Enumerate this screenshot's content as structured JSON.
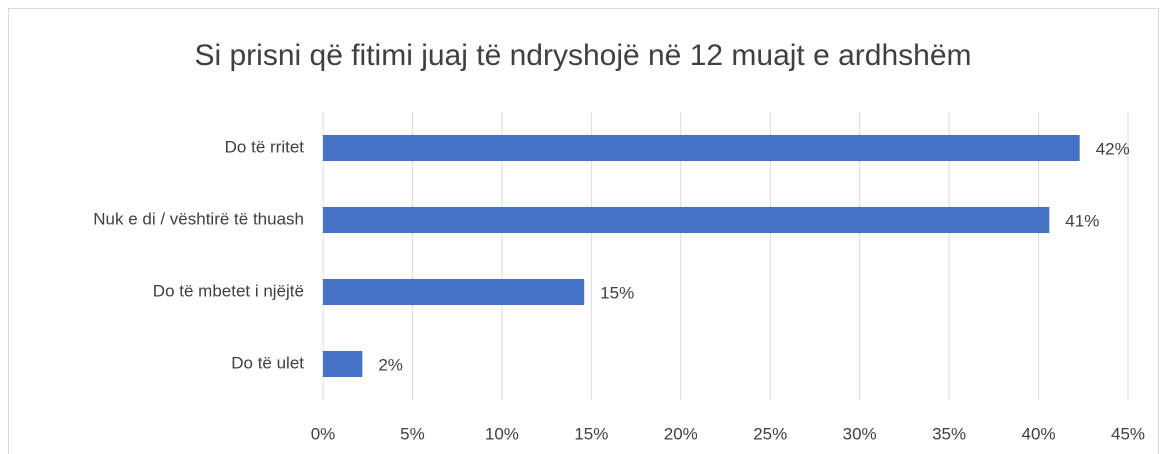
{
  "chart_data": {
    "type": "barh",
    "title": "Si prisni që fitimi juaj të ndryshojë në 12 muajt e ardhshëm",
    "categories": [
      "Do të rritet",
      "Nuk e di / vështirë të thuash",
      "Do të mbetet i njëjtë",
      "Do të ulet"
    ],
    "values": [
      42.3,
      40.6,
      14.6,
      2.2
    ],
    "value_labels": [
      "42%",
      "41%",
      "15%",
      "2%"
    ],
    "color": "#4472c4",
    "xlim": [
      0,
      45
    ],
    "xticks": [
      {
        "value": 0,
        "label": "0%"
      },
      {
        "value": 5,
        "label": "5%"
      },
      {
        "value": 10,
        "label": "10%"
      },
      {
        "value": 15,
        "label": "15%"
      },
      {
        "value": 20,
        "label": "20%"
      },
      {
        "value": 25,
        "label": "25%"
      },
      {
        "value": 30,
        "label": "30%"
      },
      {
        "value": 35,
        "label": "35%"
      },
      {
        "value": 40,
        "label": "40%"
      },
      {
        "value": 45,
        "label": "45%"
      }
    ],
    "grid": true
  }
}
